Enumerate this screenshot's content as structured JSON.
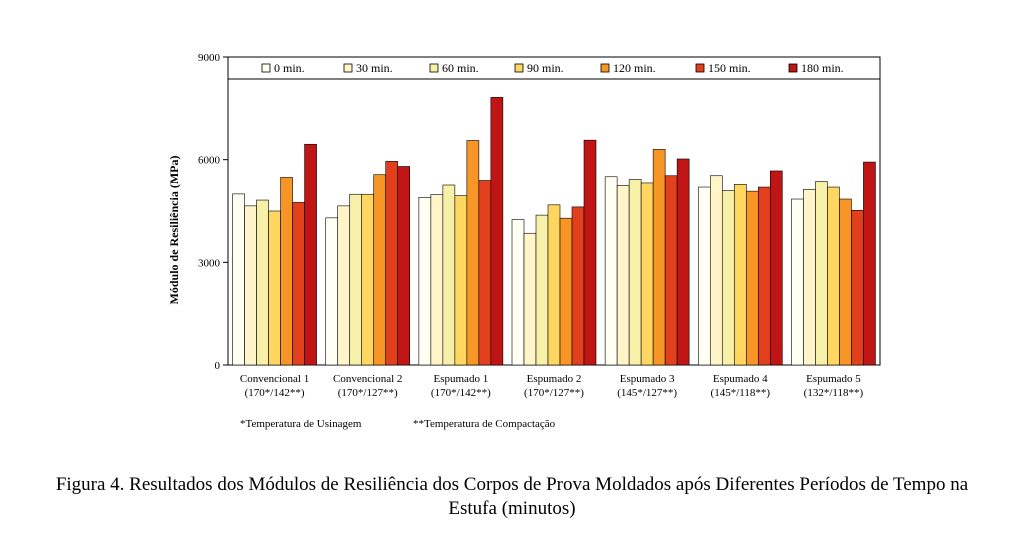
{
  "chart_data": {
    "type": "bar",
    "ylabel": "Módulo de Resiliência (MPa)",
    "ylim": [
      0,
      9000
    ],
    "yticks": [
      0,
      3000,
      6000,
      9000
    ],
    "legend_position": "top",
    "categories": [
      [
        "Convencional 1",
        "(170*/142**)"
      ],
      [
        "Convencional 2",
        "(170*/127**)"
      ],
      [
        "Espumado 1",
        "(170*/142**)"
      ],
      [
        "Espumado 2",
        "(170*/127**)"
      ],
      [
        "Espumado 3",
        "(145*/127**)"
      ],
      [
        "Espumado 4",
        "(145*/118**)"
      ],
      [
        "Espumado 5",
        "(132*/118**)"
      ]
    ],
    "series": [
      {
        "name": "0 min.",
        "color": "#fffff4",
        "values": [
          5000,
          4300,
          4900,
          4250,
          5500,
          5200,
          4850
        ]
      },
      {
        "name": "30 min.",
        "color": "#fff5c8",
        "values": [
          4650,
          4650,
          4980,
          3850,
          5250,
          5530,
          5130
        ]
      },
      {
        "name": "60 min.",
        "color": "#f6f0a8",
        "values": [
          4820,
          4990,
          5260,
          4380,
          5420,
          5100,
          5360
        ]
      },
      {
        "name": "90 min.",
        "color": "#ffd660",
        "values": [
          4500,
          4990,
          4950,
          4680,
          5320,
          5280,
          5200
        ]
      },
      {
        "name": "120 min.",
        "color": "#f79526",
        "values": [
          5480,
          5560,
          6560,
          4290,
          6300,
          5080,
          4850
        ]
      },
      {
        "name": "150 min.",
        "color": "#e2401c",
        "values": [
          4750,
          5950,
          5390,
          4620,
          5530,
          5200,
          4520
        ]
      },
      {
        "name": "180 min.",
        "color": "#c01515",
        "values": [
          6450,
          5800,
          7820,
          6570,
          6020,
          5670,
          5930
        ]
      }
    ],
    "footnotes": [
      "*Temperatura de Usinagem",
      "**Temperatura de Compactação"
    ]
  },
  "caption": {
    "line1": "Figura 4. Resultados dos Módulos de Resiliência dos Corpos de Prova Moldados após Diferentes Períodos de Tempo na",
    "line2": "Estufa (minutos)"
  }
}
